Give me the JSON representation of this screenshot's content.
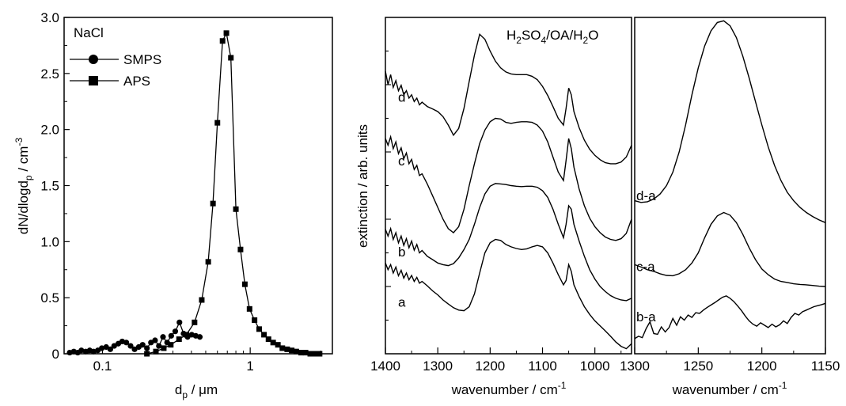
{
  "chart_data": [
    {
      "type": "scatter",
      "title": "",
      "xlabel": "d_p / μm",
      "ylabel": "dN/dlogd_p / cm^-3",
      "xscale": "log",
      "xlim": [
        0.055,
        3.6
      ],
      "ylim": [
        0,
        3.0
      ],
      "x_ticks": [
        0.1,
        1
      ],
      "x_tick_labels": [
        "0.1",
        "1"
      ],
      "y_ticks": [
        0,
        0.5,
        1.0,
        1.5,
        2.0,
        2.5,
        3.0
      ],
      "y_tick_labels": [
        "0",
        "0.5",
        "1.0",
        "1.5",
        "2.0",
        "2.5",
        "3.0"
      ],
      "legend": {
        "title": "NaCl",
        "placement": "top-left",
        "entries": [
          "SMPS",
          "APS"
        ]
      },
      "series": [
        {
          "name": "SMPS",
          "marker": "circle",
          "x": [
            0.06,
            0.064,
            0.068,
            0.072,
            0.077,
            0.082,
            0.087,
            0.093,
            0.099,
            0.106,
            0.113,
            0.12,
            0.128,
            0.136,
            0.145,
            0.155,
            0.165,
            0.176,
            0.187,
            0.2,
            0.213,
            0.227,
            0.241,
            0.257,
            0.274,
            0.292,
            0.311,
            0.332,
            0.354,
            0.377,
            0.402,
            0.428,
            0.456
          ],
          "y": [
            0.01,
            0.02,
            0.01,
            0.03,
            0.02,
            0.03,
            0.02,
            0.03,
            0.05,
            0.06,
            0.04,
            0.07,
            0.09,
            0.11,
            0.1,
            0.07,
            0.04,
            0.06,
            0.08,
            0.05,
            0.1,
            0.12,
            0.07,
            0.15,
            0.1,
            0.16,
            0.2,
            0.28,
            0.18,
            0.15,
            0.17,
            0.16,
            0.15
          ]
        },
        {
          "name": "APS",
          "marker": "square",
          "x": [
            0.2,
            0.23,
            0.26,
            0.29,
            0.33,
            0.37,
            0.42,
            0.47,
            0.52,
            0.56,
            0.6,
            0.65,
            0.69,
            0.74,
            0.8,
            0.86,
            0.92,
            0.99,
            1.07,
            1.15,
            1.24,
            1.33,
            1.43,
            1.54,
            1.65,
            1.78,
            1.91,
            2.05,
            2.21,
            2.37,
            2.55,
            2.74,
            2.95
          ],
          "y": [
            0.0,
            0.02,
            0.05,
            0.08,
            0.13,
            0.17,
            0.28,
            0.48,
            0.82,
            1.34,
            2.06,
            2.79,
            2.86,
            2.64,
            1.29,
            0.93,
            0.62,
            0.4,
            0.3,
            0.22,
            0.17,
            0.13,
            0.1,
            0.08,
            0.05,
            0.04,
            0.03,
            0.02,
            0.01,
            0.01,
            0.0,
            0.0,
            0.0
          ]
        }
      ]
    },
    {
      "type": "line",
      "title": "",
      "annotation": "H_2SO_4/OA/H_2O",
      "xlabel": "wavenumber / cm^-1",
      "ylabel": "extinction / arb. units",
      "xlim": [
        1400,
        930
      ],
      "x_reversed": true,
      "x_ticks": [
        1400,
        1300,
        1200,
        1100,
        1000
      ],
      "x_tick_labels": [
        "1400",
        "1300",
        "1200",
        "1100",
        "1000"
      ],
      "ylim": [
        0,
        1
      ],
      "y_tick_labels_shown": false,
      "series": [
        {
          "name": "a",
          "x": [
            1400,
            1395,
            1390,
            1385,
            1380,
            1375,
            1370,
            1365,
            1360,
            1355,
            1350,
            1345,
            1340,
            1335,
            1330,
            1320,
            1310,
            1300,
            1290,
            1280,
            1270,
            1260,
            1250,
            1240,
            1230,
            1220,
            1210,
            1200,
            1190,
            1180,
            1170,
            1160,
            1150,
            1140,
            1130,
            1120,
            1110,
            1100,
            1090,
            1080,
            1070,
            1060,
            1055,
            1050,
            1045,
            1040,
            1030,
            1020,
            1010,
            1000,
            990,
            980,
            970,
            960,
            950,
            940,
            930
          ],
          "y": [
            0.27,
            0.25,
            0.265,
            0.24,
            0.258,
            0.232,
            0.248,
            0.225,
            0.24,
            0.22,
            0.233,
            0.215,
            0.227,
            0.21,
            0.215,
            0.202,
            0.187,
            0.175,
            0.16,
            0.148,
            0.137,
            0.13,
            0.128,
            0.14,
            0.178,
            0.24,
            0.3,
            0.33,
            0.34,
            0.337,
            0.325,
            0.318,
            0.313,
            0.31,
            0.312,
            0.318,
            0.322,
            0.318,
            0.3,
            0.27,
            0.235,
            0.205,
            0.218,
            0.265,
            0.245,
            0.205,
            0.17,
            0.14,
            0.117,
            0.098,
            0.083,
            0.068,
            0.052,
            0.035,
            0.022,
            0.015,
            0.03
          ]
        },
        {
          "name": "b",
          "x": [
            1400,
            1395,
            1390,
            1385,
            1380,
            1375,
            1370,
            1365,
            1360,
            1355,
            1350,
            1345,
            1340,
            1335,
            1330,
            1320,
            1310,
            1300,
            1290,
            1280,
            1270,
            1260,
            1250,
            1240,
            1230,
            1220,
            1210,
            1200,
            1190,
            1180,
            1170,
            1160,
            1150,
            1140,
            1130,
            1120,
            1110,
            1100,
            1090,
            1080,
            1070,
            1060,
            1055,
            1050,
            1045,
            1040,
            1030,
            1020,
            1010,
            1000,
            990,
            980,
            970,
            960,
            950,
            940,
            930
          ],
          "y": [
            0.37,
            0.35,
            0.372,
            0.34,
            0.36,
            0.33,
            0.35,
            0.322,
            0.342,
            0.315,
            0.335,
            0.308,
            0.325,
            0.3,
            0.307,
            0.29,
            0.28,
            0.27,
            0.265,
            0.262,
            0.268,
            0.285,
            0.31,
            0.34,
            0.385,
            0.435,
            0.475,
            0.498,
            0.506,
            0.505,
            0.503,
            0.5,
            0.498,
            0.497,
            0.498,
            0.498,
            0.495,
            0.485,
            0.465,
            0.43,
            0.385,
            0.345,
            0.385,
            0.44,
            0.43,
            0.385,
            0.335,
            0.29,
            0.25,
            0.222,
            0.2,
            0.185,
            0.173,
            0.165,
            0.16,
            0.158,
            0.165
          ]
        },
        {
          "name": "c",
          "x": [
            1400,
            1395,
            1390,
            1385,
            1380,
            1375,
            1370,
            1365,
            1360,
            1355,
            1350,
            1345,
            1340,
            1335,
            1330,
            1320,
            1310,
            1300,
            1290,
            1280,
            1270,
            1260,
            1250,
            1240,
            1230,
            1220,
            1210,
            1200,
            1190,
            1180,
            1170,
            1160,
            1150,
            1140,
            1130,
            1120,
            1110,
            1100,
            1090,
            1080,
            1070,
            1060,
            1055,
            1050,
            1045,
            1040,
            1030,
            1020,
            1010,
            1000,
            990,
            980,
            970,
            960,
            950,
            940,
            930
          ],
          "y": [
            0.64,
            0.62,
            0.645,
            0.61,
            0.63,
            0.595,
            0.612,
            0.58,
            0.597,
            0.565,
            0.578,
            0.548,
            0.56,
            0.53,
            0.535,
            0.505,
            0.47,
            0.435,
            0.4,
            0.372,
            0.36,
            0.378,
            0.43,
            0.5,
            0.565,
            0.625,
            0.665,
            0.69,
            0.7,
            0.698,
            0.688,
            0.685,
            0.688,
            0.69,
            0.69,
            0.688,
            0.68,
            0.662,
            0.63,
            0.585,
            0.54,
            0.515,
            0.575,
            0.64,
            0.61,
            0.555,
            0.49,
            0.44,
            0.403,
            0.378,
            0.36,
            0.347,
            0.34,
            0.337,
            0.342,
            0.358,
            0.4
          ]
        },
        {
          "name": "d",
          "x": [
            1400,
            1395,
            1390,
            1385,
            1380,
            1375,
            1370,
            1365,
            1360,
            1355,
            1350,
            1345,
            1340,
            1335,
            1330,
            1320,
            1310,
            1300,
            1290,
            1280,
            1270,
            1260,
            1250,
            1240,
            1230,
            1220,
            1210,
            1200,
            1190,
            1180,
            1170,
            1160,
            1150,
            1140,
            1130,
            1120,
            1110,
            1100,
            1090,
            1080,
            1070,
            1060,
            1055,
            1050,
            1045,
            1040,
            1030,
            1020,
            1010,
            1000,
            990,
            980,
            970,
            960,
            950,
            940,
            930
          ],
          "y": [
            0.84,
            0.8,
            0.83,
            0.792,
            0.812,
            0.782,
            0.798,
            0.77,
            0.782,
            0.76,
            0.77,
            0.75,
            0.76,
            0.74,
            0.748,
            0.735,
            0.728,
            0.72,
            0.705,
            0.68,
            0.65,
            0.67,
            0.73,
            0.81,
            0.888,
            0.95,
            0.935,
            0.9,
            0.87,
            0.85,
            0.838,
            0.832,
            0.83,
            0.83,
            0.83,
            0.825,
            0.815,
            0.795,
            0.768,
            0.735,
            0.7,
            0.68,
            0.73,
            0.79,
            0.77,
            0.72,
            0.672,
            0.635,
            0.608,
            0.59,
            0.577,
            0.568,
            0.565,
            0.565,
            0.57,
            0.585,
            0.62
          ]
        }
      ]
    },
    {
      "type": "line",
      "title": "",
      "xlabel": "wavenumber / cm^-1",
      "ylabel": "",
      "xlim": [
        1300,
        1150
      ],
      "x_reversed": true,
      "x_ticks": [
        1300,
        1250,
        1200,
        1150
      ],
      "x_tick_labels": [
        "1300",
        "1250",
        "1200",
        "1150"
      ],
      "ylim": [
        0,
        1
      ],
      "y_tick_labels_shown": false,
      "series": [
        {
          "name": "b-a",
          "x": [
            1300,
            1297,
            1294,
            1291,
            1288,
            1285,
            1282,
            1279,
            1276,
            1273,
            1270,
            1267,
            1264,
            1261,
            1258,
            1255,
            1252,
            1249,
            1246,
            1243,
            1240,
            1237,
            1234,
            1231,
            1228,
            1225,
            1222,
            1219,
            1216,
            1213,
            1210,
            1207,
            1204,
            1201,
            1198,
            1195,
            1192,
            1189,
            1186,
            1183,
            1180,
            1177,
            1174,
            1171,
            1168,
            1165,
            1162,
            1159,
            1156,
            1153,
            1150
          ],
          "y": [
            0.045,
            0.052,
            0.048,
            0.075,
            0.095,
            0.06,
            0.058,
            0.08,
            0.065,
            0.078,
            0.105,
            0.085,
            0.11,
            0.1,
            0.115,
            0.108,
            0.122,
            0.12,
            0.13,
            0.138,
            0.145,
            0.152,
            0.16,
            0.168,
            0.172,
            0.165,
            0.155,
            0.142,
            0.128,
            0.112,
            0.098,
            0.088,
            0.082,
            0.092,
            0.085,
            0.078,
            0.088,
            0.08,
            0.086,
            0.098,
            0.09,
            0.108,
            0.12,
            0.115,
            0.125,
            0.13,
            0.135,
            0.14,
            0.143,
            0.146,
            0.15
          ]
        },
        {
          "name": "c-a",
          "x": [
            1300,
            1295,
            1290,
            1285,
            1280,
            1275,
            1270,
            1265,
            1260,
            1255,
            1250,
            1245,
            1240,
            1235,
            1230,
            1225,
            1220,
            1215,
            1210,
            1205,
            1200,
            1195,
            1190,
            1185,
            1180,
            1175,
            1170,
            1165,
            1160,
            1155,
            1150
          ],
          "y": [
            0.265,
            0.258,
            0.25,
            0.245,
            0.238,
            0.233,
            0.232,
            0.238,
            0.25,
            0.27,
            0.3,
            0.345,
            0.385,
            0.41,
            0.42,
            0.412,
            0.39,
            0.355,
            0.315,
            0.28,
            0.252,
            0.235,
            0.222,
            0.215,
            0.212,
            0.208,
            0.206,
            0.205,
            0.203,
            0.201,
            0.2
          ]
        },
        {
          "name": "d-a",
          "x": [
            1300,
            1295,
            1290,
            1285,
            1280,
            1275,
            1270,
            1265,
            1260,
            1255,
            1250,
            1245,
            1240,
            1235,
            1230,
            1225,
            1220,
            1215,
            1210,
            1205,
            1200,
            1195,
            1190,
            1185,
            1180,
            1175,
            1170,
            1165,
            1160,
            1155,
            1150
          ],
          "y": [
            0.455,
            0.45,
            0.452,
            0.46,
            0.475,
            0.5,
            0.54,
            0.6,
            0.68,
            0.77,
            0.85,
            0.915,
            0.96,
            0.985,
            0.99,
            0.975,
            0.94,
            0.885,
            0.82,
            0.75,
            0.68,
            0.615,
            0.56,
            0.515,
            0.48,
            0.455,
            0.435,
            0.42,
            0.408,
            0.398,
            0.39
          ]
        }
      ]
    }
  ]
}
